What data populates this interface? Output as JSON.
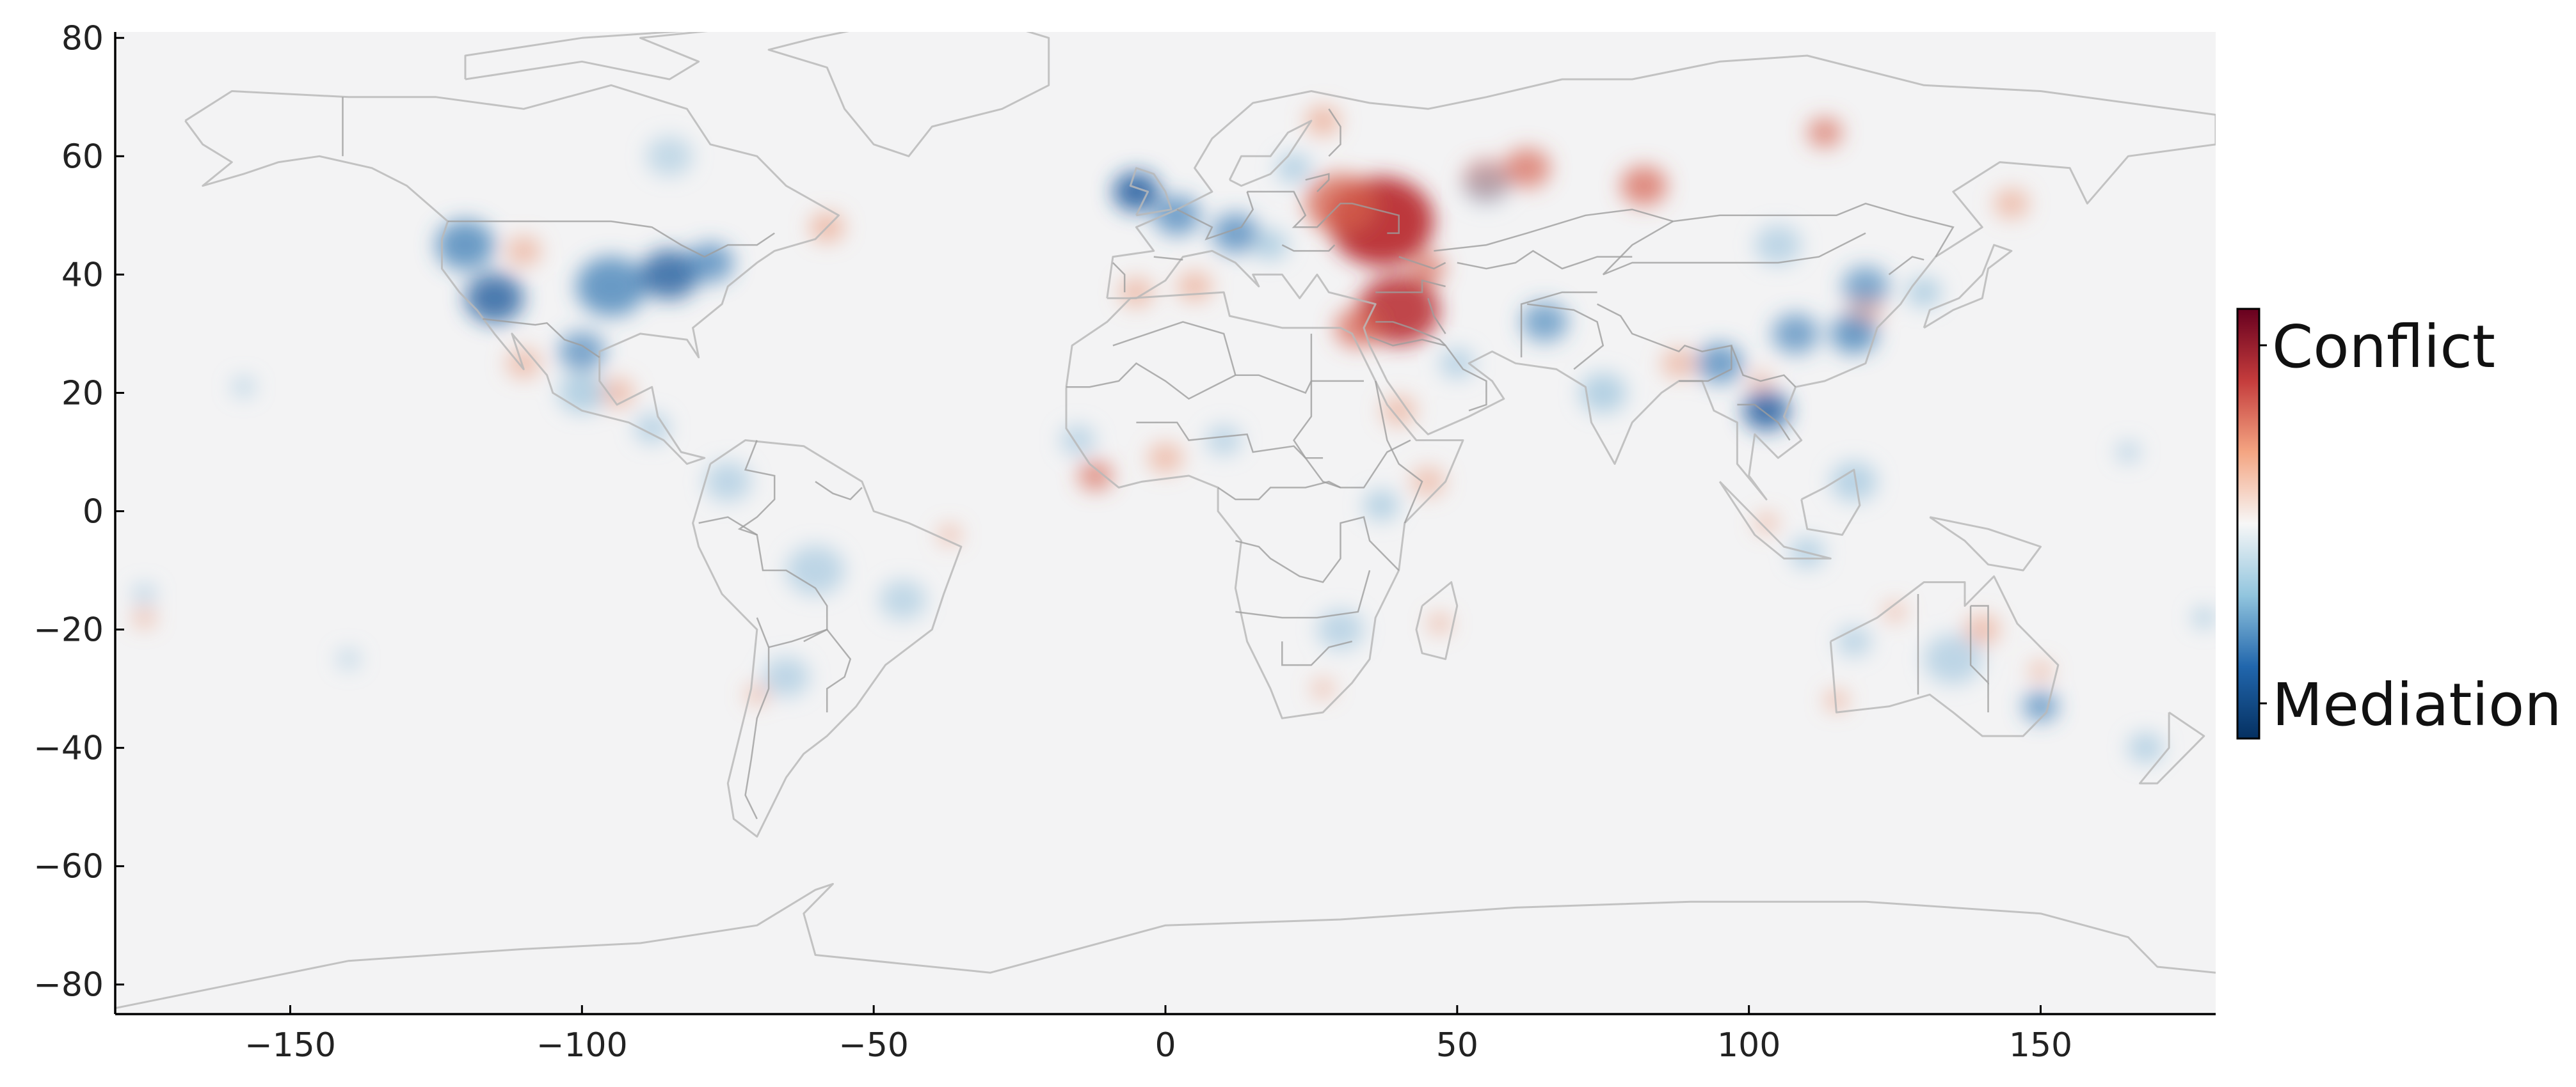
{
  "map": {
    "projection": "equirectangular",
    "x_ticks": [
      -150,
      -100,
      -50,
      0,
      50,
      100,
      150
    ],
    "x_tick_labels": [
      "−150",
      "−100",
      "−50",
      "0",
      "50",
      "100",
      "150"
    ],
    "y_ticks": [
      80,
      60,
      40,
      20,
      0,
      -20,
      -40,
      -60,
      -80
    ],
    "y_tick_labels": [
      "80",
      "60",
      "40",
      "20",
      "0",
      "−20",
      "−40",
      "−60",
      "−80"
    ],
    "xlim": [
      -180,
      180
    ],
    "ylim": [
      -85,
      81
    ],
    "background_color": "#f3f3f4",
    "coastline_color": "#b9b9b9",
    "border_color": "#9e9e9e"
  },
  "colorbar": {
    "top_label": "Conflict",
    "bottom_label": "Mediation",
    "colors": [
      "#67001f",
      "#c43c3c",
      "#f4a582",
      "#f7f7f7",
      "#92c5de",
      "#2166ac",
      "#053061"
    ]
  },
  "hotspots": [
    {
      "lon": 37,
      "lat": 49,
      "value": 0.95,
      "spread": 9
    },
    {
      "lon": 30,
      "lat": 52,
      "value": 0.7,
      "spread": 6
    },
    {
      "lon": 40,
      "lat": 34,
      "value": 0.85,
      "spread": 7
    },
    {
      "lon": 33,
      "lat": 31,
      "value": 0.6,
      "spread": 4
    },
    {
      "lon": 55,
      "lat": 56,
      "value": 0.6,
      "spread": 4
    },
    {
      "lon": 62,
      "lat": 58,
      "value": 0.55,
      "spread": 4
    },
    {
      "lon": 82,
      "lat": 55,
      "value": 0.6,
      "spread": 4
    },
    {
      "lon": 113,
      "lat": 64,
      "value": 0.5,
      "spread": 3
    },
    {
      "lon": 27,
      "lat": 66,
      "value": 0.45,
      "spread": 3
    },
    {
      "lon": 45,
      "lat": 41,
      "value": 0.5,
      "spread": 3
    },
    {
      "lon": 5,
      "lat": 38,
      "value": 0.4,
      "spread": 3
    },
    {
      "lon": -5,
      "lat": 37,
      "value": 0.35,
      "spread": 3
    },
    {
      "lon": -12,
      "lat": 6,
      "value": 0.5,
      "spread": 3
    },
    {
      "lon": 0,
      "lat": 9,
      "value": 0.4,
      "spread": 3
    },
    {
      "lon": 40,
      "lat": 17,
      "value": 0.35,
      "spread": 3
    },
    {
      "lon": 45,
      "lat": 5,
      "value": 0.3,
      "spread": 3
    },
    {
      "lon": -110,
      "lat": 44,
      "value": 0.4,
      "spread": 3
    },
    {
      "lon": -94,
      "lat": 20,
      "value": 0.35,
      "spread": 3
    },
    {
      "lon": -110,
      "lat": 25,
      "value": 0.35,
      "spread": 3
    },
    {
      "lon": -58,
      "lat": 48,
      "value": 0.45,
      "spread": 3
    },
    {
      "lon": -37,
      "lat": -4,
      "value": 0.35,
      "spread": 2
    },
    {
      "lon": -70,
      "lat": -31,
      "value": 0.35,
      "spread": 2
    },
    {
      "lon": -175,
      "lat": -18,
      "value": 0.35,
      "spread": 2
    },
    {
      "lon": 47,
      "lat": -19,
      "value": 0.4,
      "spread": 2
    },
    {
      "lon": 27,
      "lat": -30,
      "value": 0.3,
      "spread": 2
    },
    {
      "lon": 115,
      "lat": -32,
      "value": 0.45,
      "spread": 2
    },
    {
      "lon": 140,
      "lat": -20,
      "value": 0.4,
      "spread": 3
    },
    {
      "lon": 150,
      "lat": -27,
      "value": 0.35,
      "spread": 2
    },
    {
      "lon": 125,
      "lat": -17,
      "value": 0.3,
      "spread": 2
    },
    {
      "lon": 145,
      "lat": 52,
      "value": 0.4,
      "spread": 3
    },
    {
      "lon": 120,
      "lat": 34,
      "value": 0.35,
      "spread": 3
    },
    {
      "lon": 102,
      "lat": 22,
      "value": 0.3,
      "spread": 2
    },
    {
      "lon": 88,
      "lat": 25,
      "value": 0.35,
      "spread": 3
    },
    {
      "lon": 103,
      "lat": -2,
      "value": 0.35,
      "spread": 2
    },
    {
      "lon": -85,
      "lat": 60,
      "value": -0.2,
      "spread": 4
    },
    {
      "lon": -120,
      "lat": 45,
      "value": -0.7,
      "spread": 5
    },
    {
      "lon": -115,
      "lat": 36,
      "value": -0.75,
      "spread": 5
    },
    {
      "lon": -95,
      "lat": 38,
      "value": -0.7,
      "spread": 6
    },
    {
      "lon": -85,
      "lat": 40,
      "value": -0.75,
      "spread": 5
    },
    {
      "lon": -78,
      "lat": 42,
      "value": -0.6,
      "spread": 4
    },
    {
      "lon": -100,
      "lat": 27,
      "value": -0.55,
      "spread": 4
    },
    {
      "lon": -100,
      "lat": 20,
      "value": -0.45,
      "spread": 4
    },
    {
      "lon": -88,
      "lat": 14,
      "value": -0.35,
      "spread": 3
    },
    {
      "lon": -75,
      "lat": 5,
      "value": -0.3,
      "spread": 4
    },
    {
      "lon": -60,
      "lat": -10,
      "value": -0.3,
      "spread": 5
    },
    {
      "lon": -45,
      "lat": -15,
      "value": -0.25,
      "spread": 4
    },
    {
      "lon": -65,
      "lat": -28,
      "value": -0.3,
      "spread": 4
    },
    {
      "lon": -5,
      "lat": 54,
      "value": -0.85,
      "spread": 4
    },
    {
      "lon": 2,
      "lat": 50,
      "value": -0.6,
      "spread": 4
    },
    {
      "lon": 12,
      "lat": 47,
      "value": -0.6,
      "spread": 4
    },
    {
      "lon": 18,
      "lat": 45,
      "value": -0.45,
      "spread": 3
    },
    {
      "lon": 22,
      "lat": 58,
      "value": -0.4,
      "spread": 3
    },
    {
      "lon": -15,
      "lat": 12,
      "value": -0.3,
      "spread": 3
    },
    {
      "lon": 10,
      "lat": 12,
      "value": -0.3,
      "spread": 3
    },
    {
      "lon": 37,
      "lat": 1,
      "value": -0.45,
      "spread": 3
    },
    {
      "lon": 30,
      "lat": -20,
      "value": -0.3,
      "spread": 4
    },
    {
      "lon": 50,
      "lat": 25,
      "value": -0.35,
      "spread": 3
    },
    {
      "lon": 65,
      "lat": 32,
      "value": -0.5,
      "spread": 4
    },
    {
      "lon": 75,
      "lat": 20,
      "value": -0.45,
      "spread": 4
    },
    {
      "lon": 95,
      "lat": 25,
      "value": -0.6,
      "spread": 4
    },
    {
      "lon": 103,
      "lat": 17,
      "value": -0.8,
      "spread": 4
    },
    {
      "lon": 108,
      "lat": 30,
      "value": -0.55,
      "spread": 4
    },
    {
      "lon": 118,
      "lat": 30,
      "value": -0.7,
      "spread": 4
    },
    {
      "lon": 120,
      "lat": 38,
      "value": -0.5,
      "spread": 4
    },
    {
      "lon": 130,
      "lat": 37,
      "value": -0.45,
      "spread": 3
    },
    {
      "lon": 105,
      "lat": 45,
      "value": -0.3,
      "spread": 4
    },
    {
      "lon": 118,
      "lat": 5,
      "value": -0.4,
      "spread": 4
    },
    {
      "lon": 110,
      "lat": -7,
      "value": -0.4,
      "spread": 3
    },
    {
      "lon": 150,
      "lat": -33,
      "value": -0.6,
      "spread": 3
    },
    {
      "lon": 135,
      "lat": -25,
      "value": -0.3,
      "spread": 5
    },
    {
      "lon": 118,
      "lat": -22,
      "value": -0.3,
      "spread": 3
    },
    {
      "lon": 168,
      "lat": -40,
      "value": -0.4,
      "spread": 3
    },
    {
      "lon": 165,
      "lat": 10,
      "value": -0.35,
      "spread": 2
    },
    {
      "lon": 178,
      "lat": -18,
      "value": -0.45,
      "spread": 2
    },
    {
      "lon": -175,
      "lat": -14,
      "value": -0.3,
      "spread": 2
    },
    {
      "lon": -158,
      "lat": 21,
      "value": -0.25,
      "spread": 2
    },
    {
      "lon": -140,
      "lat": -25,
      "value": -0.2,
      "spread": 2
    },
    {
      "lon": 55,
      "lat": 55,
      "value": -0.2,
      "spread": 4
    }
  ]
}
